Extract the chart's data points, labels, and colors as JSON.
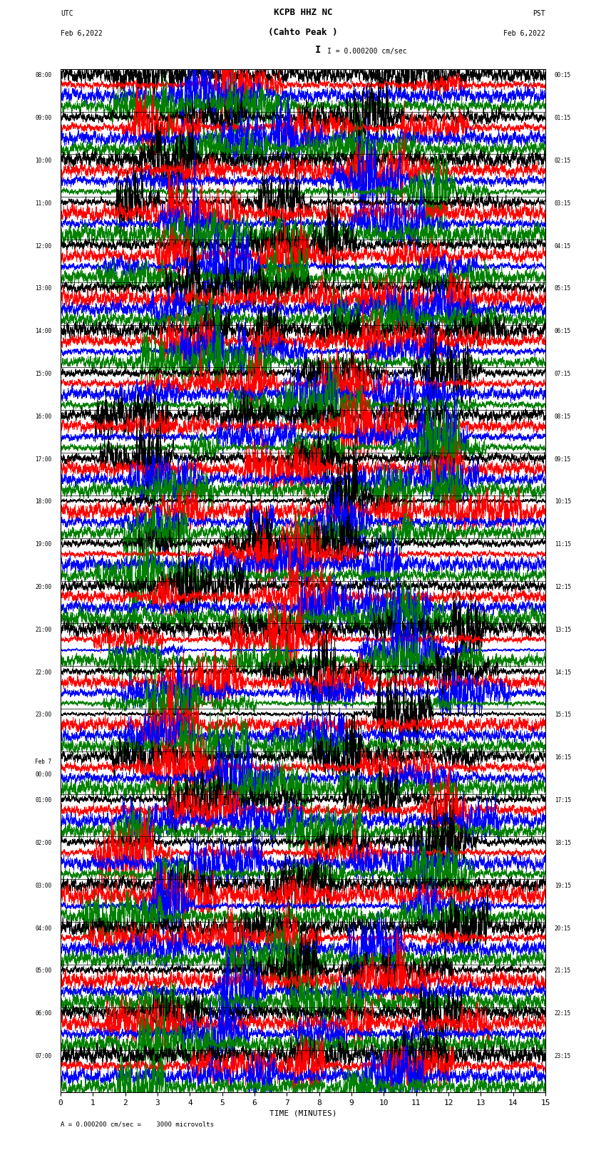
{
  "title_line1": "KCPB HHZ NC",
  "title_line2": "(Cahto Peak )",
  "scale_label": "I = 0.000200 cm/sec",
  "left_label": "UTC",
  "left_date": "Feb 6,2022",
  "right_label": "PST",
  "right_date": "Feb 6,2022",
  "bottom_label": "TIME (MINUTES)",
  "scale_note": "A = 0.000200 cm/sec =    3000 microvolts",
  "left_times": [
    "08:00",
    "09:00",
    "10:00",
    "11:00",
    "12:00",
    "13:00",
    "14:00",
    "15:00",
    "16:00",
    "17:00",
    "18:00",
    "19:00",
    "20:00",
    "21:00",
    "22:00",
    "23:00",
    "Feb 7\n00:00",
    "01:00",
    "02:00",
    "03:00",
    "04:00",
    "05:00",
    "06:00",
    "07:00"
  ],
  "right_times": [
    "00:15",
    "01:15",
    "02:15",
    "03:15",
    "04:15",
    "05:15",
    "06:15",
    "07:15",
    "08:15",
    "09:15",
    "10:15",
    "11:15",
    "12:15",
    "13:15",
    "14:15",
    "15:15",
    "16:15",
    "17:15",
    "18:15",
    "19:15",
    "20:15",
    "21:15",
    "22:15",
    "23:15"
  ],
  "n_rows": 24,
  "n_minutes": 15,
  "sub_traces": [
    "black",
    "red",
    "blue",
    "green"
  ],
  "fig_width": 8.5,
  "fig_height": 16.13,
  "bg_color": "white",
  "trace_linewidth": 0.4,
  "samples_per_row": 9000,
  "x_tick_positions": [
    0,
    1,
    2,
    3,
    4,
    5,
    6,
    7,
    8,
    9,
    10,
    11,
    12,
    13,
    14,
    15
  ],
  "x_tick_labels": [
    "0",
    "1",
    "2",
    "3",
    "4",
    "5",
    "6",
    "7",
    "8",
    "9",
    "10",
    "11",
    "12",
    "13",
    "14",
    "15"
  ]
}
